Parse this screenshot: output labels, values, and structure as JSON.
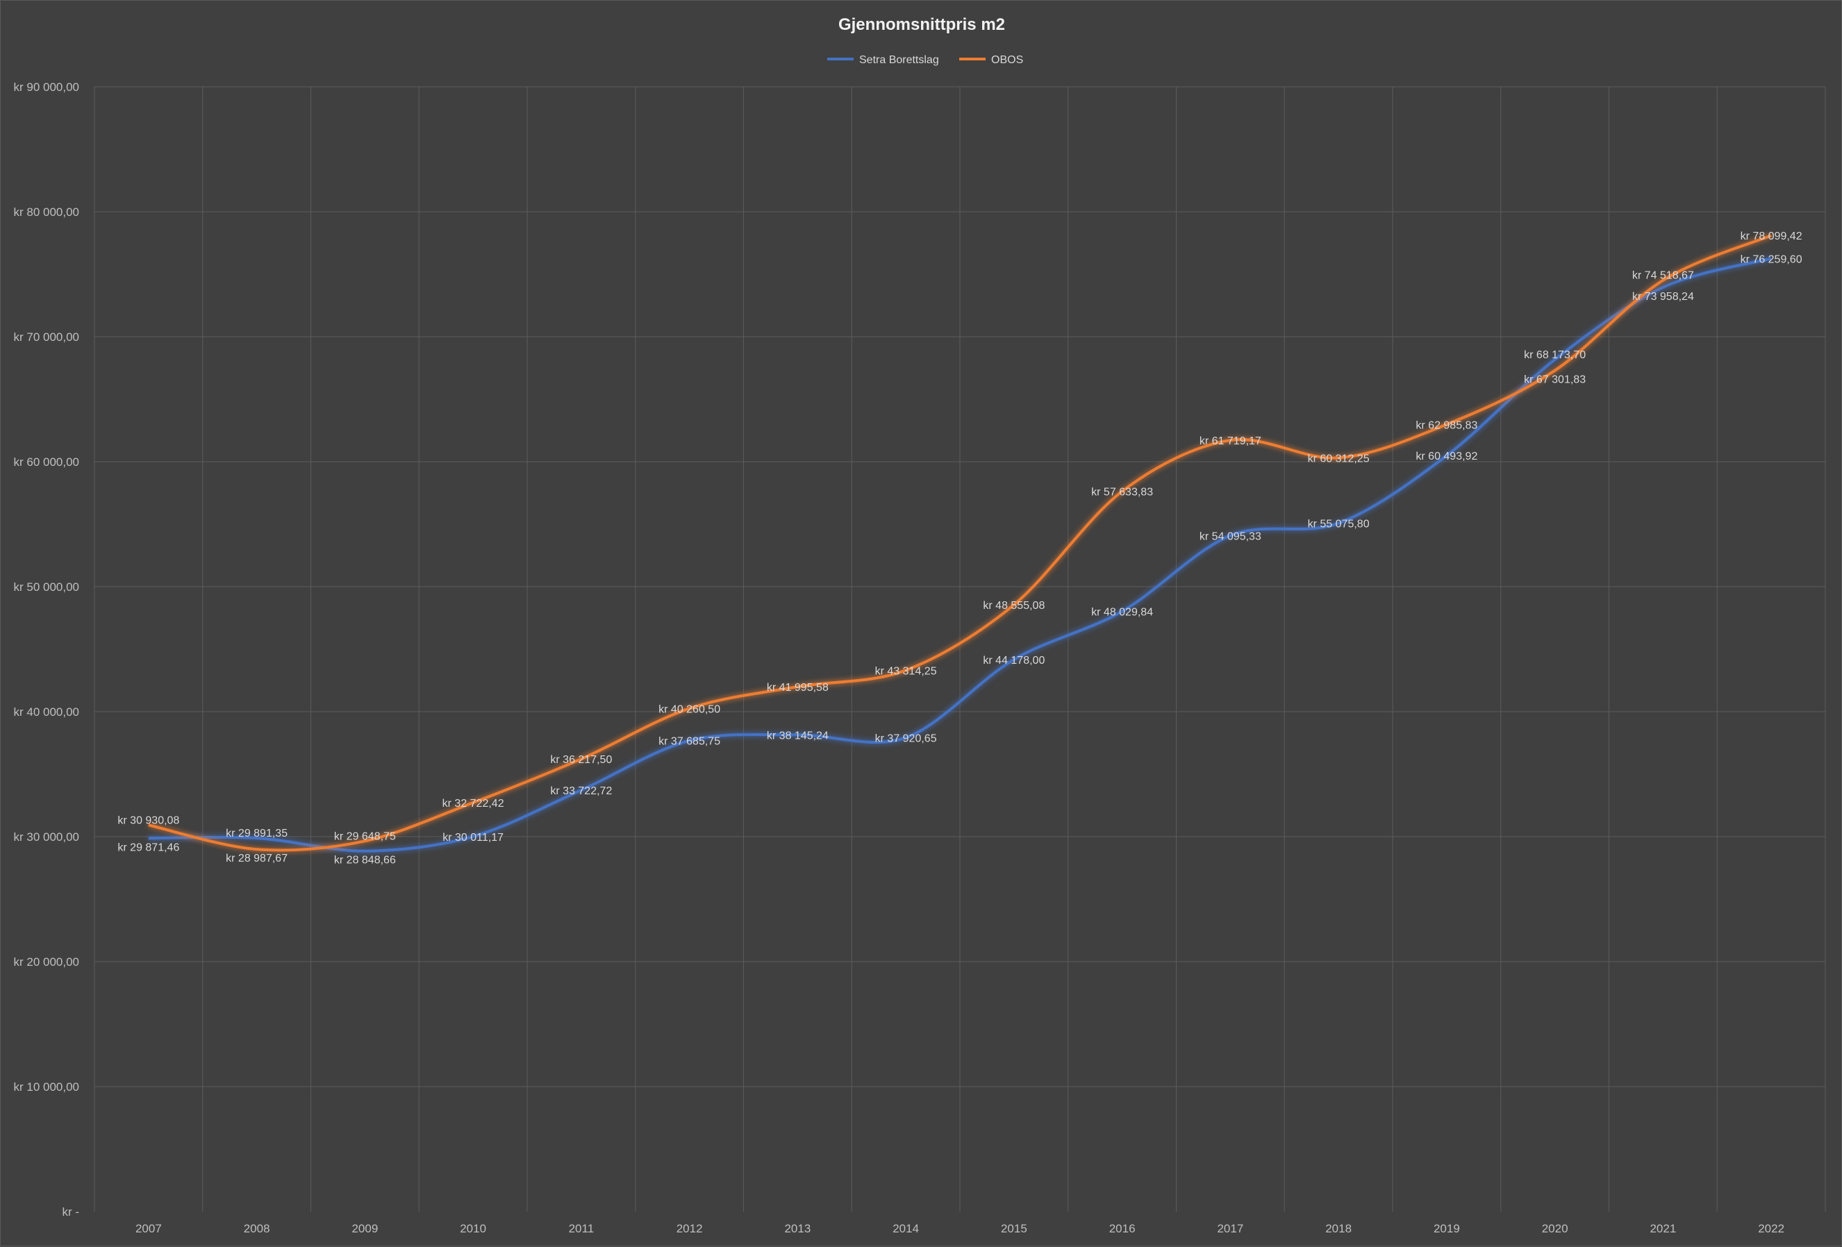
{
  "chart_data": {
    "type": "line",
    "title": "Gjennomsnittpris m2",
    "categories": [
      "2007",
      "2008",
      "2009",
      "2010",
      "2011",
      "2012",
      "2013",
      "2014",
      "2015",
      "2016",
      "2017",
      "2018",
      "2019",
      "2020",
      "2021",
      "2022"
    ],
    "ylim": [
      0,
      90000
    ],
    "y_ticks": [
      0,
      10000,
      20000,
      30000,
      40000,
      50000,
      60000,
      70000,
      80000,
      90000
    ],
    "y_tick_labels": [
      "kr -",
      "kr 10 000,00",
      "kr 20 000,00",
      "kr 30 000,00",
      "kr 40 000,00",
      "kr 50 000,00",
      "kr 60 000,00",
      "kr 70 000,00",
      "kr 80 000,00",
      "kr 90 000,00"
    ],
    "grid": true,
    "legend_position": "top",
    "series": [
      {
        "name": "Setra Borettslag",
        "color": "#4472C4",
        "values": [
          29871.46,
          29891.35,
          28848.66,
          30011.17,
          33722.72,
          37685.75,
          38145.24,
          37920.65,
          44178.0,
          48029.84,
          54095.33,
          55075.8,
          60493.92,
          68173.7,
          73958.24,
          76259.6
        ],
        "labels": [
          "kr 29 871,46",
          "kr 29 891,35",
          "kr 28 848,66",
          "kr 30 011,17",
          "kr 33 722,72",
          "kr 37 685,75",
          "kr 38 145,24",
          "kr 37 920,65",
          "kr 44 178,00",
          "kr 48 029,84",
          "kr 54 095,33",
          "kr 55 075,80",
          "kr 60 493,92",
          "kr 68 173,70",
          "kr 73 958,24",
          "kr 76 259,60"
        ]
      },
      {
        "name": "OBOS",
        "color": "#ED7D31",
        "values": [
          30930.08,
          28987.67,
          29648.75,
          32722.42,
          36217.5,
          40260.5,
          41995.58,
          43314.25,
          48555.08,
          57633.83,
          61719.17,
          60312.25,
          62985.83,
          67301.83,
          74518.67,
          78099.42
        ],
        "labels": [
          "kr 30 930,08",
          "kr 28 987,67",
          "kr 29 648,75",
          "kr 32 722,42",
          "kr 36 217,50",
          "kr 40 260,50",
          "kr 41 995,58",
          "kr 43 314,25",
          "kr 48 555,08",
          "kr 57 633,83",
          "kr 61 719,17",
          "kr 60 312,25",
          "kr 62 985,83",
          "kr 67 301,83",
          "kr 74 518,67",
          "kr 78 099,42"
        ]
      }
    ]
  }
}
